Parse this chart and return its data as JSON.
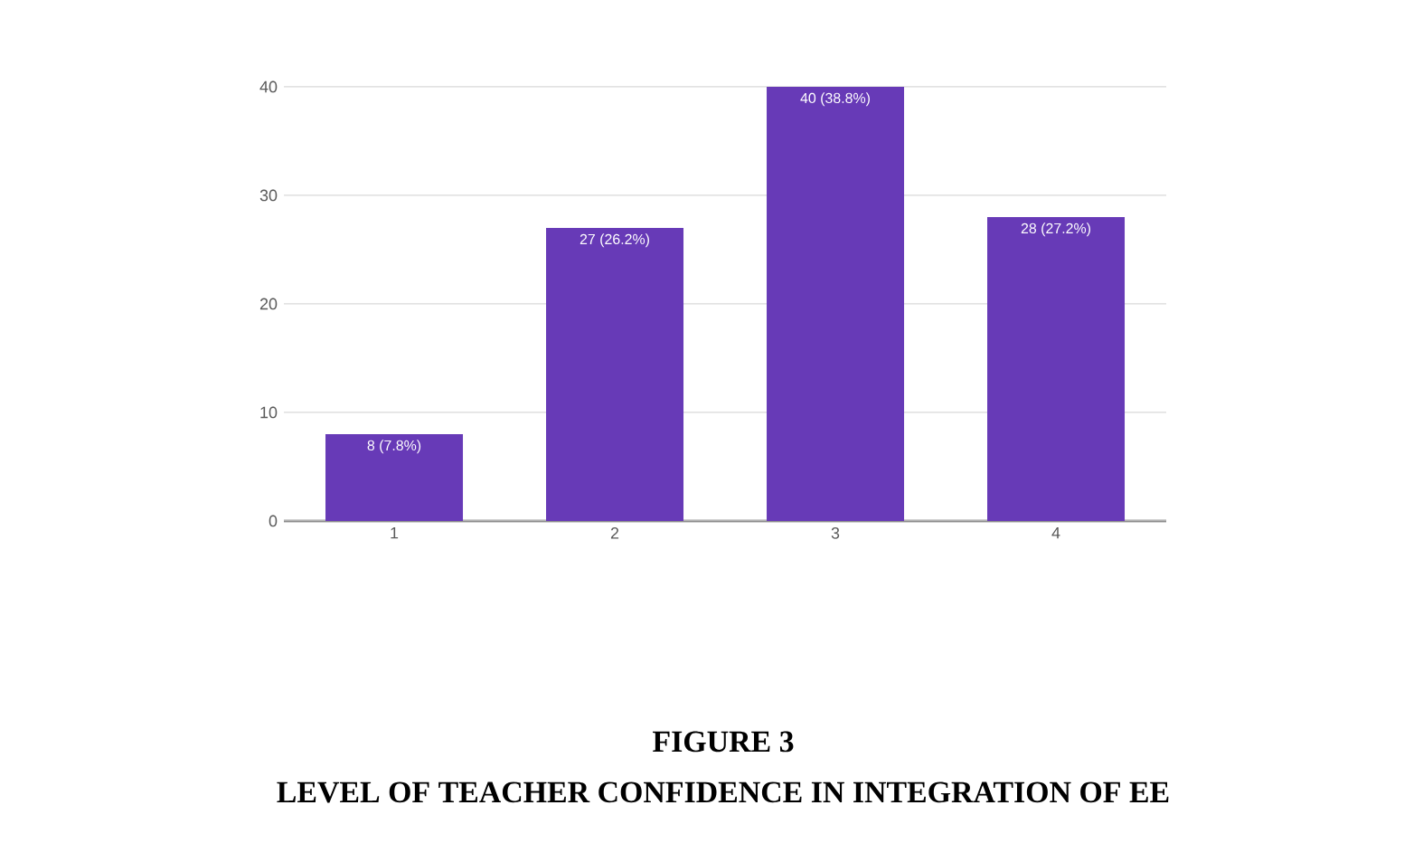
{
  "chart_data": {
    "type": "bar",
    "title": "FIGURE 3",
    "subtitle": "LEVEL OF TEACHER CONFIDENCE IN INTEGRATION OF EE",
    "categories": [
      "1",
      "2",
      "3",
      "4"
    ],
    "values": [
      8,
      27,
      40,
      28
    ],
    "value_labels": [
      "8 (7.8%)",
      "27 (26.2%)",
      "40 (38.8%)",
      "28 (27.2%)"
    ],
    "color": "#673ab7",
    "ylim": [
      0,
      40
    ],
    "yticks": [
      0,
      10,
      20,
      30,
      40
    ],
    "grid": "y"
  }
}
